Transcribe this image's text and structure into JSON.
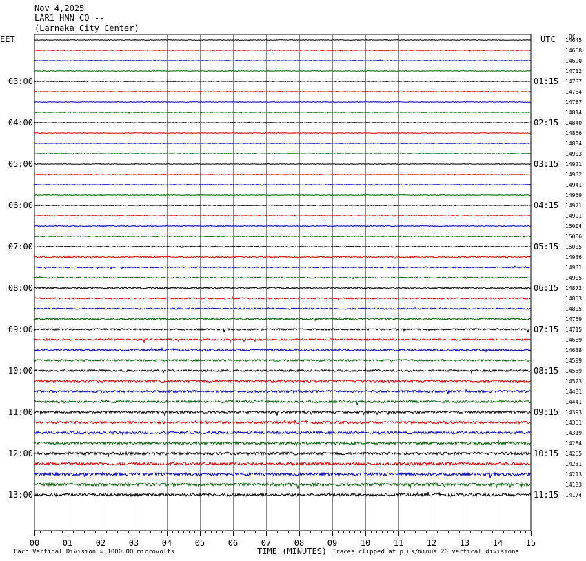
{
  "header": {
    "date": "Nov 4,2025",
    "station": "LAR1 HNN CQ --",
    "location": "(Larnaka City Center)"
  },
  "chart_data": {
    "type": "line",
    "left_axis_title": "EET",
    "right_axis_title": "UTC",
    "dc_title": "DC",
    "left_hour_labels": [
      "03:00",
      "04:00",
      "05:00",
      "06:00",
      "07:00",
      "08:00",
      "09:00",
      "10:00",
      "11:00",
      "12:00",
      "13:00"
    ],
    "right_hour_labels": [
      "01:15",
      "02:15",
      "03:15",
      "04:15",
      "05:15",
      "06:15",
      "07:15",
      "08:15",
      "09:15",
      "10:15",
      "11:15"
    ],
    "dc_offsets": [
      14645,
      14668,
      14690,
      14712,
      14737,
      14764,
      14787,
      14814,
      14840,
      14866,
      14884,
      14903,
      14921,
      14932,
      14941,
      14959,
      14971,
      14991,
      15004,
      15006,
      15005,
      14936,
      14931,
      14905,
      14872,
      14853,
      14805,
      14759,
      14715,
      14689,
      14638,
      14599,
      14559,
      14523,
      14481,
      14441,
      14393,
      14361,
      14319,
      14284,
      14265,
      14231,
      14213,
      14183,
      14174
    ],
    "trace_colors": [
      "#000000",
      "#e00000",
      "#0000c0",
      "#006000"
    ],
    "x_ticks": [
      "00",
      "01",
      "02",
      "03",
      "04",
      "05",
      "06",
      "07",
      "08",
      "09",
      "10",
      "11",
      "12",
      "13",
      "14",
      "15"
    ],
    "xlim": [
      0,
      15
    ],
    "xlabel": "TIME (MINUTES)",
    "scale_note": "Each Vertical Division = 1000.00 microvolts",
    "clip_note": "Traces clipped at plus/minus 20 vertical divisions",
    "grid": true
  }
}
